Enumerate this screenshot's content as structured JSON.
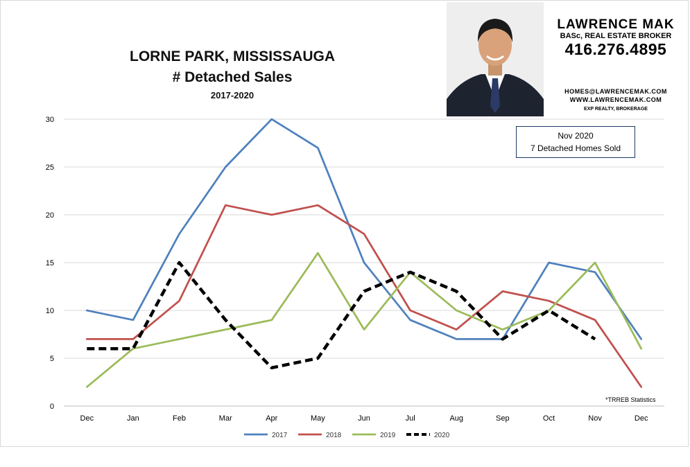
{
  "header": {
    "title_line1": "LORNE PARK, MISSISSAUGA",
    "title_line2": "# Detached Sales",
    "subtitle": "2017-2020"
  },
  "branding": {
    "name": "LAWRENCE MAK",
    "credentials": "BASc, REAL ESTATE BROKER",
    "phone": "416.276.4895",
    "email": "HOMES@LAWRENCEMAK.COM",
    "website": "WWW.LAWRENCEMAK.COM",
    "brokerage": "EXP REALTY, BROKERAGE",
    "photo_icon": "agent-portrait"
  },
  "callout": {
    "line1": "Nov 2020",
    "line2": "7 Detached Homes Sold"
  },
  "note": "*TRREB Statistics",
  "chart_data": {
    "type": "line",
    "title": "LORNE PARK, MISSISSAUGA # Detached Sales",
    "subtitle": "2017-2020",
    "xlabel": "",
    "ylabel": "",
    "categories": [
      "Dec",
      "Jan",
      "Feb",
      "Mar",
      "Apr",
      "May",
      "Jun",
      "Jul",
      "Aug",
      "Sep",
      "Oct",
      "Nov",
      "Dec"
    ],
    "ylim": [
      0,
      30
    ],
    "yticks": [
      0,
      5,
      10,
      15,
      20,
      25,
      30
    ],
    "grid": true,
    "legend_position": "bottom",
    "series": [
      {
        "name": "2017",
        "color": "#4f81bd",
        "dashed": false,
        "values": [
          10,
          9,
          18,
          25,
          30,
          27,
          15,
          9,
          7,
          7,
          15,
          14,
          7
        ]
      },
      {
        "name": "2018",
        "color": "#c0504d",
        "dashed": false,
        "values": [
          7,
          7,
          11,
          21,
          20,
          21,
          18,
          10,
          8,
          12,
          11,
          9,
          2
        ]
      },
      {
        "name": "2019",
        "color": "#9bbb59",
        "dashed": false,
        "values": [
          2,
          6,
          7,
          8,
          9,
          16,
          8,
          14,
          10,
          8,
          10,
          15,
          6
        ]
      },
      {
        "name": "2020",
        "color": "#000000",
        "dashed": true,
        "values": [
          6,
          6,
          15,
          9,
          4,
          5,
          12,
          14,
          12,
          7,
          10,
          7,
          null
        ]
      }
    ]
  }
}
